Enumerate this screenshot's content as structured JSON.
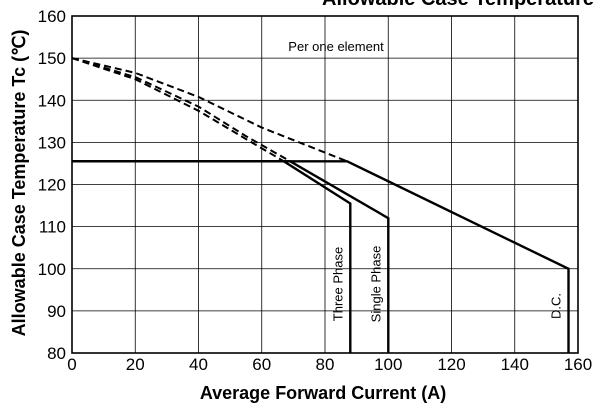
{
  "chart_data": {
    "type": "line",
    "title": "Allowable Case Temperature",
    "xlabel": "Average Forward Current (A)",
    "ylabel": "Allowable Case Temperature Tc (℃)",
    "annotation": "Per one element",
    "xlim": [
      0,
      160
    ],
    "ylim": [
      80,
      160
    ],
    "xticks": [
      0,
      20,
      40,
      60,
      80,
      100,
      120,
      140,
      160
    ],
    "yticks": [
      80,
      90,
      100,
      110,
      120,
      130,
      140,
      150,
      160
    ],
    "grid": true,
    "series": [
      {
        "name": "D.C.",
        "style": "solid",
        "points": [
          [
            0,
            125.5
          ],
          [
            87,
            125.5
          ],
          [
            157,
            100
          ],
          [
            157,
            80
          ]
        ],
        "dashed_curve": [
          [
            0,
            150
          ],
          [
            20,
            146.5
          ],
          [
            40,
            140.8
          ],
          [
            60,
            133.5
          ],
          [
            87,
            125.5
          ]
        ]
      },
      {
        "name": "Single Phase",
        "style": "solid",
        "points": [
          [
            0,
            125.5
          ],
          [
            69,
            125.5
          ],
          [
            100,
            112
          ],
          [
            100,
            80
          ]
        ],
        "dashed_curve": [
          [
            0,
            150
          ],
          [
            20,
            145.5
          ],
          [
            40,
            138.5
          ],
          [
            55,
            131.5
          ],
          [
            69,
            125.5
          ]
        ]
      },
      {
        "name": "Three Phase",
        "style": "solid",
        "points": [
          [
            0,
            125.5
          ],
          [
            67,
            125.5
          ],
          [
            88,
            115.5
          ],
          [
            88,
            80
          ]
        ],
        "dashed_curve": [
          [
            0,
            150
          ],
          [
            20,
            145
          ],
          [
            40,
            137.5
          ],
          [
            55,
            130.8
          ],
          [
            67,
            125.5
          ]
        ]
      }
    ]
  }
}
